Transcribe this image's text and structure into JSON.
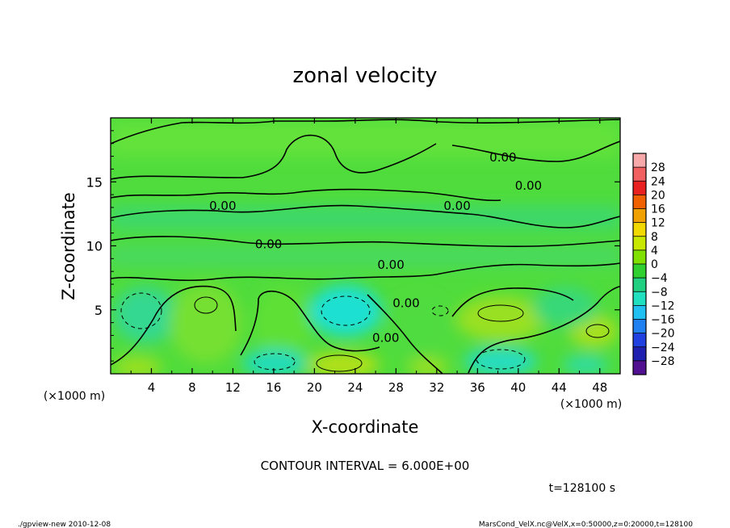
{
  "chart_data": {
    "type": "heatmap",
    "title": "zonal velocity",
    "xlabel": "X-coordinate",
    "ylabel": "Z-coordinate",
    "x_unit_label": "(×1000 m)",
    "y_unit_label": "(×1000 m)",
    "xlim": [
      0,
      50
    ],
    "ylim": [
      0,
      20
    ],
    "x_ticks": [
      "4",
      "8",
      "12",
      "16",
      "20",
      "24",
      "28",
      "32",
      "36",
      "40",
      "44",
      "48"
    ],
    "y_ticks": [
      "5",
      "10",
      "15"
    ],
    "colorbar": {
      "labels": [
        "28",
        "24",
        "20",
        "16",
        "12",
        "8",
        "4",
        "0",
        "−4",
        "−8",
        "−12",
        "−16",
        "−20",
        "−24",
        "−28"
      ],
      "colors": [
        "#f7a8a8",
        "#f06060",
        "#e82020",
        "#f06000",
        "#f0a000",
        "#f0d800",
        "#c8e800",
        "#80e000",
        "#30d030",
        "#20d080",
        "#20e0c0",
        "#20c0f0",
        "#2080f0",
        "#2040e0",
        "#2020b0",
        "#501090"
      ]
    },
    "contour_labels": [
      "0.00",
      "0.00",
      "0.00",
      "0.00",
      "0.00",
      "0.00",
      "0.00",
      "0.00"
    ],
    "contour_interval_text": "CONTOUR INTERVAL = 6.000E+00",
    "time_text": "t=128100 s"
  },
  "footer": {
    "left": "./gpview-new  2010-12-08",
    "right": "MarsCond_VelX.nc@VelX,x=0:50000,z=0:20000,t=128100"
  }
}
